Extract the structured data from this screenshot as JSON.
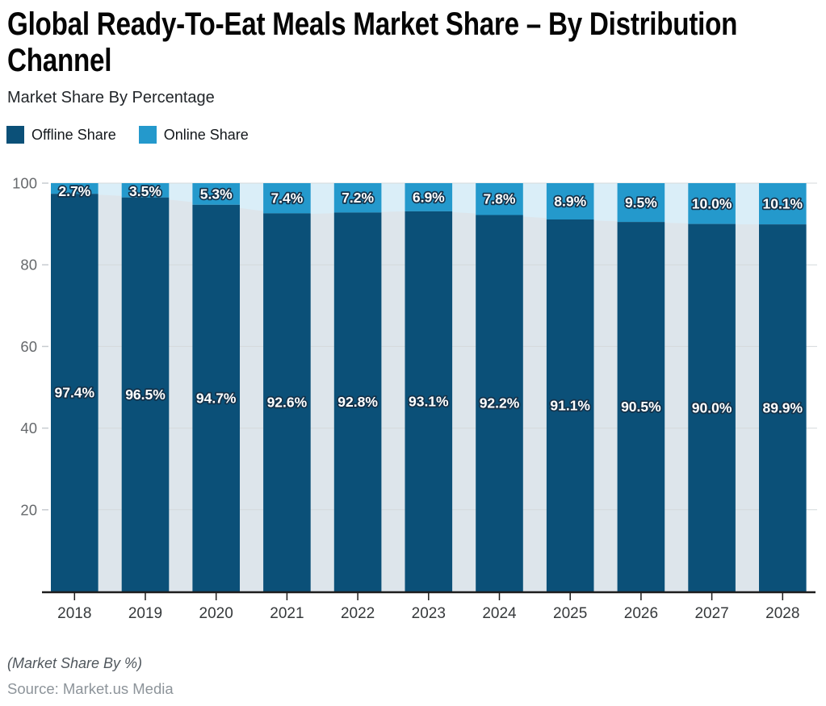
{
  "header": {
    "title_line1": "Global Ready-To-Eat Meals Market Share – By Distribution",
    "title_line2": "Channel",
    "subtitle": "Market Share By Percentage"
  },
  "legend": [
    {
      "label": "Offline Share",
      "color": "#0b5078"
    },
    {
      "label": "Online Share",
      "color": "#2499cc"
    }
  ],
  "footer": {
    "note": "(Market Share By %)",
    "source": "Source: Market.us Media"
  },
  "chart_data": {
    "type": "bar",
    "stacked": true,
    "title": "Global Ready-To-Eat Meals Market Share – By Distribution Channel",
    "subtitle": "Market Share By Percentage",
    "categories": [
      "2018",
      "2019",
      "2020",
      "2021",
      "2022",
      "2023",
      "2024",
      "2025",
      "2026",
      "2027",
      "2028"
    ],
    "series": [
      {
        "name": "Offline Share",
        "color": "#0b5078",
        "values": [
          97.4,
          96.5,
          94.7,
          92.6,
          92.8,
          93.1,
          92.2,
          91.1,
          90.5,
          90.0,
          89.9
        ]
      },
      {
        "name": "Online Share",
        "color": "#2499cc",
        "values": [
          2.7,
          3.5,
          5.3,
          7.4,
          7.2,
          6.9,
          7.8,
          8.9,
          9.5,
          10.0,
          10.1
        ]
      }
    ],
    "background_area_colors": {
      "offline": "#dde5eb",
      "online": "#daeef8"
    },
    "label_style": {
      "fill": "#ffffff",
      "outline": "#14324a"
    },
    "y_ticks": [
      20,
      40,
      60,
      80,
      100
    ],
    "ylim": [
      0,
      100
    ],
    "xlabel": "",
    "ylabel": "",
    "value_suffix": "%",
    "legend_position": "top-left",
    "grid": true
  }
}
